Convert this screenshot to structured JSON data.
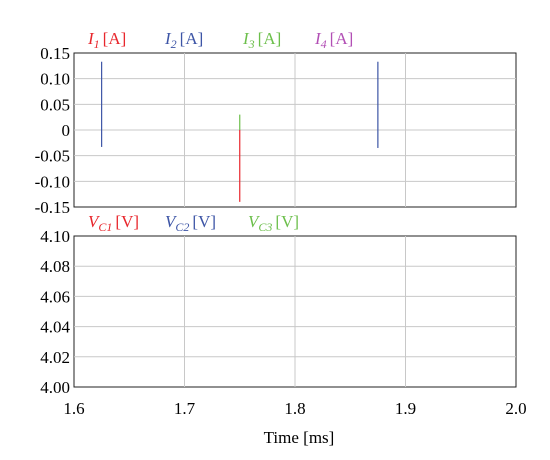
{
  "chart_data": [
    {
      "type": "line",
      "xlim": [
        1.6,
        2.0
      ],
      "ylim": [
        -0.15,
        0.15
      ],
      "yticks": [
        "0.15",
        "0.10",
        "0.05",
        "0",
        "-0.05",
        "-0.10",
        "-0.15"
      ],
      "ytick_values": [
        0.15,
        0.1,
        0.05,
        0,
        -0.05,
        -0.1,
        -0.15
      ],
      "grid": true,
      "legend_placement": "top",
      "legend": [
        {
          "sym": "I",
          "sub": "1",
          "unit": "[A]",
          "color": "#e8262c"
        },
        {
          "sym": "I",
          "sub": "2",
          "unit": "[A]",
          "color": "#3d55a6"
        },
        {
          "sym": "I",
          "sub": "3",
          "unit": "[A]",
          "color": "#6cbf4b"
        },
        {
          "sym": "I",
          "sub": "4",
          "unit": "[A]",
          "color": "#b24fb5"
        }
      ],
      "series": [
        {
          "color": "#3d55a6",
          "segments": [
            [
              1.625,
              -0.033,
              0.133
            ]
          ]
        },
        {
          "color": "#6cbf4b",
          "segments": [
            [
              1.75,
              0.0,
              0.03
            ]
          ]
        },
        {
          "color": "#e8262c",
          "segments": [
            [
              1.75,
              -0.14,
              0.0
            ]
          ]
        },
        {
          "color": "#3d55a6",
          "segments": [
            [
              1.875,
              -0.035,
              0.133
            ]
          ]
        }
      ]
    },
    {
      "type": "line",
      "xlim": [
        1.6,
        2.0
      ],
      "ylim": [
        4.0,
        4.1
      ],
      "yticks": [
        "4.10",
        "4.08",
        "4.06",
        "4.04",
        "4.02",
        "4.00"
      ],
      "ytick_values": [
        4.1,
        4.08,
        4.06,
        4.04,
        4.02,
        4.0
      ],
      "xticks": [
        "1.6",
        "1.7",
        "1.8",
        "1.9",
        "2.0"
      ],
      "xtick_values": [
        1.6,
        1.7,
        1.8,
        1.9,
        2.0
      ],
      "xlabel": "Time [ms]",
      "grid": true,
      "legend_placement": "top",
      "legend": [
        {
          "sym": "V",
          "sub": "C1",
          "unit": "[V]",
          "color": "#e8262c"
        },
        {
          "sym": "V",
          "sub": "C2",
          "unit": "[V]",
          "color": "#3d55a6"
        },
        {
          "sym": "V",
          "sub": "C3",
          "unit": "[V]",
          "color": "#6cbf4b"
        }
      ],
      "series": []
    }
  ]
}
